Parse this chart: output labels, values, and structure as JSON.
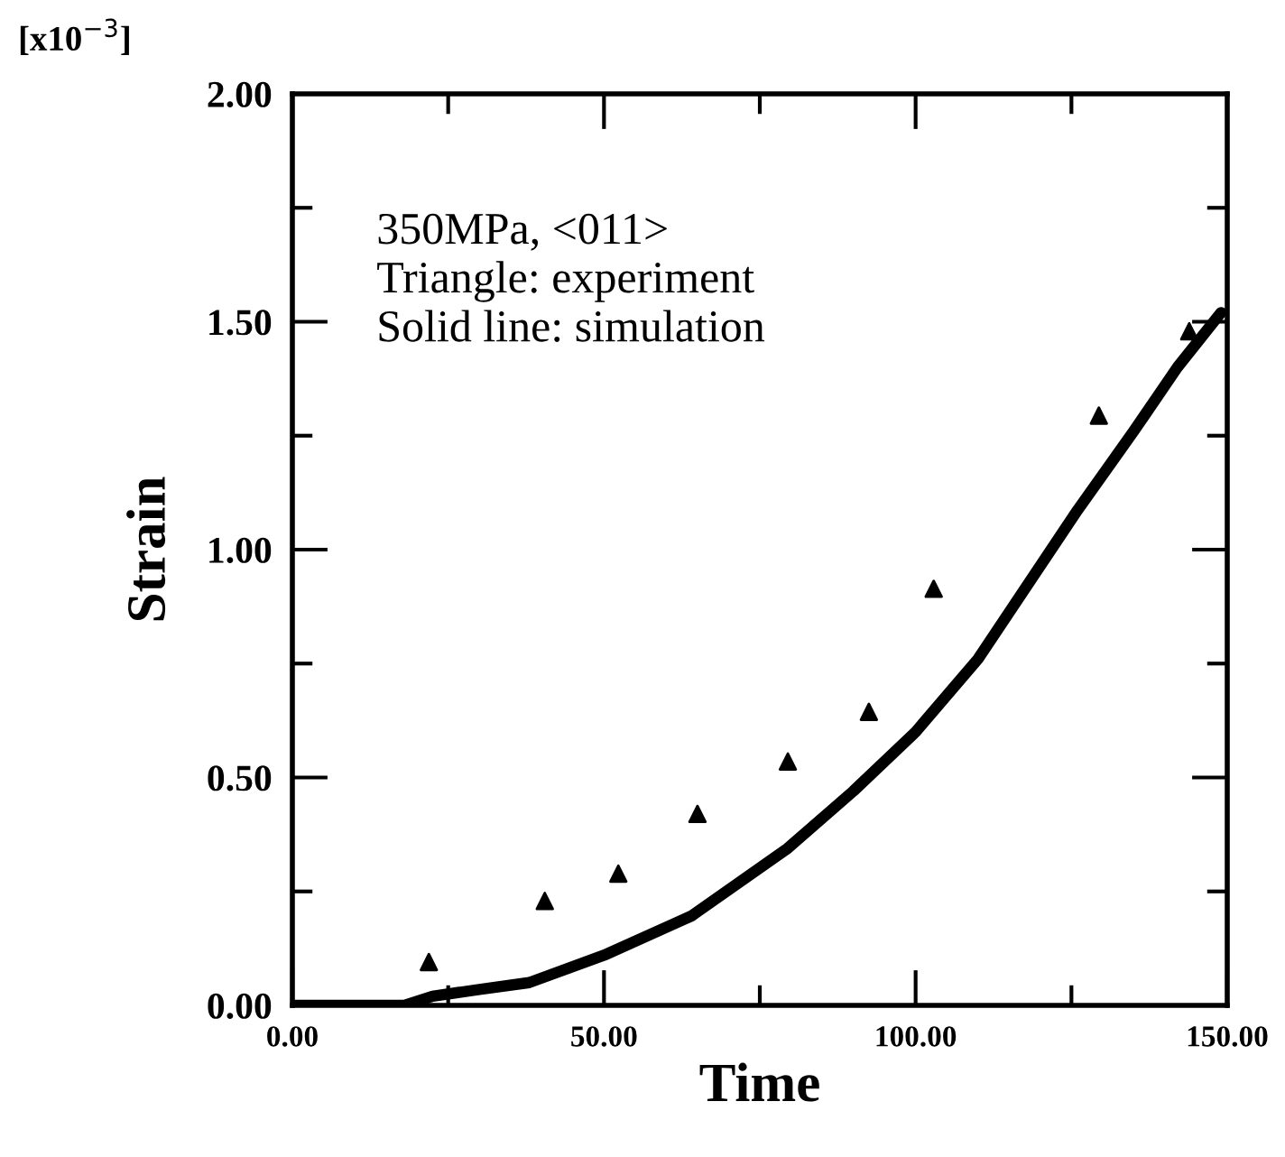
{
  "chart_data": {
    "type": "line",
    "xlabel": "Time",
    "ylabel": "Strain",
    "annotations": [
      "[x10$^{−3}$]",
      "350MPa, <011>\nTriangle: experiment\nSolid line: simulation"
    ],
    "xlim": [
      0,
      150
    ],
    "ylim": [
      0,
      2
    ],
    "xticks": [
      {
        "value": 0,
        "label": "0.00"
      },
      {
        "value": 25,
        "label": null
      },
      {
        "value": 50,
        "label": "50.00"
      },
      {
        "value": 75,
        "label": null
      },
      {
        "value": 100,
        "label": "100.00"
      },
      {
        "value": 125,
        "label": null
      },
      {
        "value": 150,
        "label": "150.00"
      }
    ],
    "yticks": [
      {
        "value": 0,
        "label": "0.00"
      },
      {
        "value": 0.25,
        "label": null
      },
      {
        "value": 0.5,
        "label": "0.50"
      },
      {
        "value": 0.75,
        "label": null
      },
      {
        "value": 1,
        "label": "1.00"
      },
      {
        "value": 1.25,
        "label": null
      },
      {
        "value": 1.5,
        "label": "1.50"
      },
      {
        "value": 1.75,
        "label": null
      },
      {
        "value": 2,
        "label": "2.00"
      }
    ],
    "grid": false,
    "legend": false,
    "series": [
      {
        "color": "#000000",
        "marker": "none",
        "line_style": "solid",
        "x": [
          0,
          18,
          22.5,
          30,
          38,
          50,
          64,
          79.5,
          90,
          100,
          110,
          126,
          135,
          142,
          149
        ],
        "values": [
          0,
          0,
          0.02,
          0.035,
          0.05,
          0.11,
          0.196,
          0.345,
          0.47,
          0.6,
          0.76,
          1.087,
          1.26,
          1.4,
          1.52
        ]
      },
      {
        "type": "scatter",
        "color": "#000000",
        "marker": "triangle",
        "x": [
          21.9,
          40.5,
          52.3,
          65.0,
          79.5,
          92.5,
          102.9,
          129.4,
          143.9
        ],
        "values": [
          0.095,
          0.229,
          0.289,
          0.42,
          0.535,
          0.644,
          0.914,
          1.294,
          1.479
        ]
      }
    ]
  }
}
